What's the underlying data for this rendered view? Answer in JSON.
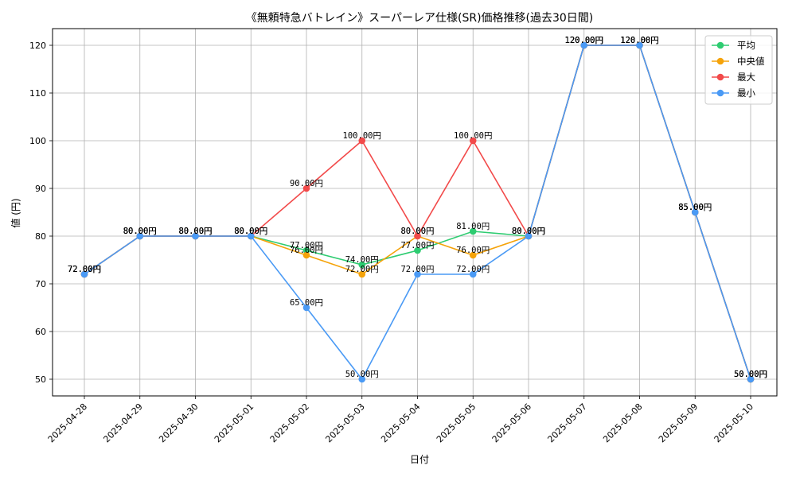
{
  "chart_data": {
    "type": "line",
    "title": "《無頼特急バトレイン》スーパーレア仕様(SR)価格推移(過去30日間)",
    "xlabel": "日付",
    "ylabel": "値 (円)",
    "ylim": [
      46.5,
      123.5
    ],
    "yticks": [
      50,
      60,
      70,
      80,
      90,
      100,
      110,
      120
    ],
    "grid": true,
    "legend_position": "top-right",
    "categories": [
      "2025-04-28",
      "2025-04-29",
      "2025-04-30",
      "2025-05-01",
      "2025-05-02",
      "2025-05-03",
      "2025-05-04",
      "2025-05-05",
      "2025-05-06",
      "2025-05-07",
      "2025-05-08",
      "2025-05-09",
      "2025-05-10"
    ],
    "series": [
      {
        "name": "平均",
        "color": "#2ecc71",
        "values": [
          72,
          80,
          80,
          80,
          77,
          74,
          77,
          81,
          80,
          120,
          120,
          85,
          50
        ]
      },
      {
        "name": "中央値",
        "color": "#f5a30a",
        "values": [
          72,
          80,
          80,
          80,
          76,
          72,
          80,
          76,
          80,
          120,
          120,
          85,
          50
        ]
      },
      {
        "name": "最大",
        "color": "#f24a4a",
        "values": [
          72,
          80,
          80,
          80,
          90,
          100,
          80,
          100,
          80,
          120,
          120,
          85,
          50
        ]
      },
      {
        "name": "最小",
        "color": "#4a9af5",
        "values": [
          72,
          80,
          80,
          80,
          65,
          50,
          72,
          72,
          80,
          120,
          120,
          85,
          50
        ]
      }
    ],
    "label_suffix": "円"
  }
}
